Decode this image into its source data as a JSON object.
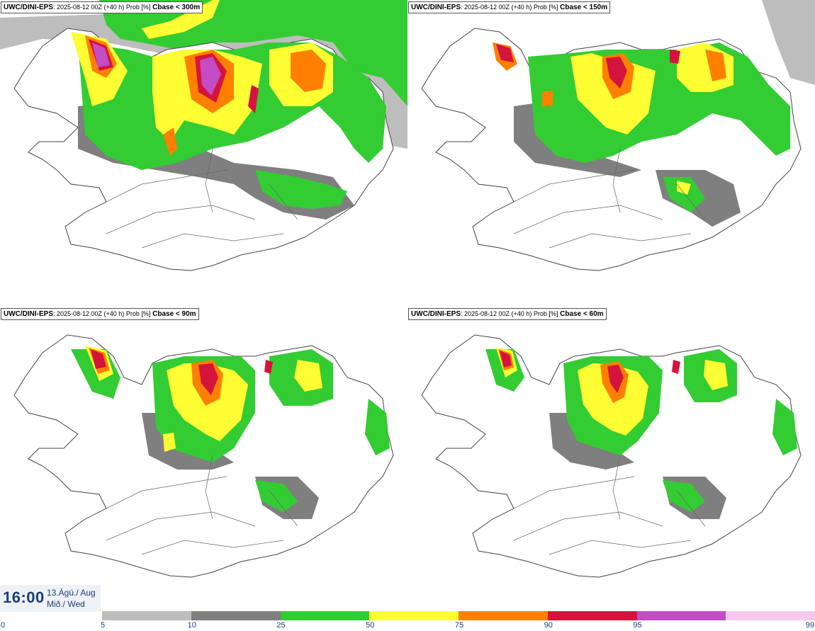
{
  "panels": [
    {
      "model": "UWC/DINI-EPS",
      "meta": ": 2025-08-12 00Z (+40 h) Prob [%]",
      "variable": "Cbase < 300m"
    },
    {
      "model": "UWC/DINI-EPS",
      "meta": ": 2025-08-12 00Z (+40 h) Prob [%]",
      "variable": "Cbase < 150m"
    },
    {
      "model": "UWC/DINI-EPS",
      "meta": ": 2025-08-12 00Z (+40 h) Prob [%]",
      "variable": "Cbase < 90m"
    },
    {
      "model": "UWC/DINI-EPS",
      "meta": ": 2025-08-12 00Z (+40 h) Prob [%]",
      "variable": "Cbase < 60m"
    }
  ],
  "valid_time": {
    "time": "16:00",
    "date_line1": "13.Ágú./ Aug",
    "date_line2": "Mið./ Wed"
  },
  "colorbar": {
    "ticks": [
      "0",
      "5",
      "10",
      "25",
      "50",
      "75",
      "90",
      "95",
      "99"
    ],
    "colors": [
      "#bdbdbd",
      "#7f7f7f",
      "#33cc33",
      "#ffff33",
      "#ff7f00",
      "#d4143c",
      "#c44cc4",
      "#f7c8f0"
    ],
    "map_colors": {
      "land": "#ffffff",
      "coast": "#444444",
      "gray_light": "#bdbdbd",
      "gray_dark": "#7f7f7f",
      "green": "#33cc33",
      "yellow": "#ffff33",
      "orange": "#ff7f00",
      "red": "#d4143c",
      "magenta": "#c44cc4"
    }
  }
}
